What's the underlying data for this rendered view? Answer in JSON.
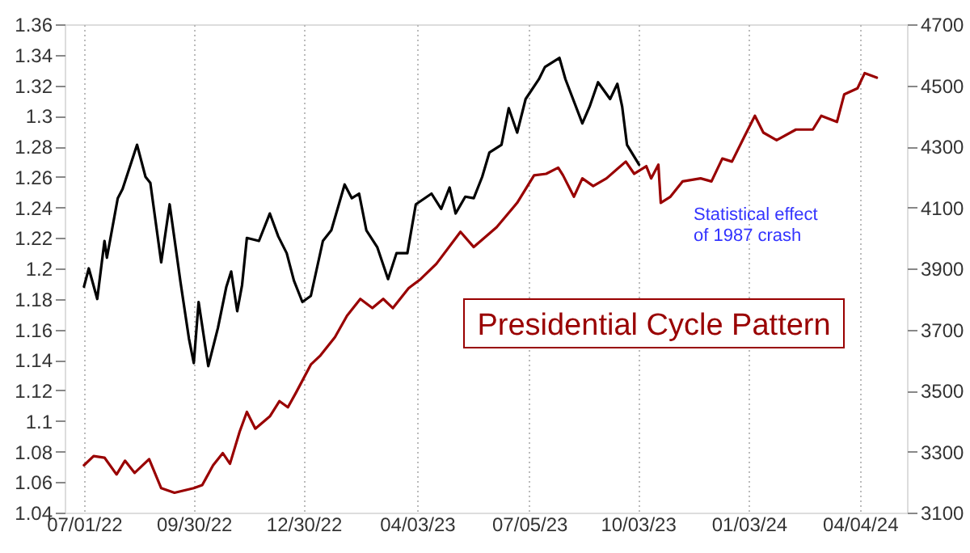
{
  "chart_data": {
    "type": "line",
    "xlim": [
      "2022-06-15",
      "2024-05-13"
    ],
    "xticks": [
      {
        "value": "2022-07-01",
        "label": "07/01/22"
      },
      {
        "value": "2022-09-30",
        "label": "09/30/22"
      },
      {
        "value": "2022-12-30",
        "label": "12/30/22"
      },
      {
        "value": "2023-04-03",
        "label": "04/03/23"
      },
      {
        "value": "2023-07-05",
        "label": "07/05/23"
      },
      {
        "value": "2023-10-03",
        "label": "10/03/23"
      },
      {
        "value": "2024-01-03",
        "label": "01/03/24"
      },
      {
        "value": "2024-04-04",
        "label": "04/04/24"
      }
    ],
    "ylim": [
      1.04,
      1.36
    ],
    "yticks": [
      1.04,
      1.06,
      1.08,
      1.1,
      1.12,
      1.14,
      1.16,
      1.18,
      1.2,
      1.22,
      1.24,
      1.26,
      1.28,
      1.3,
      1.32,
      1.34,
      1.36
    ],
    "y2lim": [
      3100,
      4700
    ],
    "y2ticks": [
      3100,
      3300,
      3500,
      3700,
      3900,
      4100,
      4300,
      4500,
      4700
    ],
    "grid": "x",
    "marker": "none",
    "line_style": "solid",
    "annotations": [
      "Statistical effect of 1987 crash"
    ],
    "series": [
      {
        "color": "#000000",
        "axis": "y2",
        "x": [
          "2022-07-01",
          "2022-07-05",
          "2022-07-12",
          "2022-07-18",
          "2022-07-20",
          "2022-07-29",
          "2022-08-02",
          "2022-08-14",
          "2022-08-21",
          "2022-08-25",
          "2022-09-03",
          "2022-09-10",
          "2022-09-19",
          "2022-09-26",
          "2022-09-30",
          "2022-10-04",
          "2022-10-12",
          "2022-10-20",
          "2022-10-27",
          "2022-10-31",
          "2022-11-05",
          "2022-11-09",
          "2022-11-13",
          "2022-11-23",
          "2022-12-02",
          "2022-12-09",
          "2022-12-16",
          "2022-12-22",
          "2022-12-29",
          "2023-01-05",
          "2023-01-15",
          "2023-01-22",
          "2023-02-02",
          "2023-02-08",
          "2023-02-14",
          "2023-02-20",
          "2023-03-01",
          "2023-03-10",
          "2023-03-17",
          "2023-03-26",
          "2023-04-02",
          "2023-04-15",
          "2023-04-23",
          "2023-04-30",
          "2023-05-05",
          "2023-05-13",
          "2023-05-20",
          "2023-05-27",
          "2023-06-02",
          "2023-06-12",
          "2023-06-18",
          "2023-06-25",
          "2023-07-02",
          "2023-07-13",
          "2023-07-18",
          "2023-07-30",
          "2023-08-04",
          "2023-08-18",
          "2023-08-24",
          "2023-08-31",
          "2023-09-10",
          "2023-09-16",
          "2023-09-20",
          "2023-09-24",
          "2023-10-04"
        ],
        "values": [
          3840,
          3900,
          3800,
          3990,
          3935,
          4130,
          4160,
          4305,
          4200,
          4180,
          3920,
          4110,
          3855,
          3670,
          3590,
          3790,
          3580,
          3705,
          3840,
          3890,
          3760,
          3845,
          4000,
          3990,
          4080,
          4005,
          3950,
          3860,
          3790,
          3810,
          3990,
          4025,
          4175,
          4130,
          4145,
          4025,
          3970,
          3865,
          3950,
          3950,
          4110,
          4145,
          4095,
          4165,
          4080,
          4135,
          4130,
          4200,
          4280,
          4305,
          4425,
          4345,
          4455,
          4520,
          4560,
          4590,
          4520,
          4375,
          4430,
          4510,
          4455,
          4505,
          4430,
          4305,
          4240
        ]
      },
      {
        "name": "Presidential Cycle Pattern",
        "color": "#990000",
        "axis": "y",
        "x": [
          "2022-07-01",
          "2022-07-09",
          "2022-07-18",
          "2022-07-28",
          "2022-08-04",
          "2022-08-12",
          "2022-08-24",
          "2022-09-03",
          "2022-09-14",
          "2022-09-30",
          "2022-10-07",
          "2022-10-16",
          "2022-10-24",
          "2022-10-30",
          "2022-11-07",
          "2022-11-13",
          "2022-11-20",
          "2022-12-02",
          "2022-12-10",
          "2022-12-17",
          "2022-12-24",
          "2023-01-05",
          "2023-01-13",
          "2023-01-25",
          "2023-02-04",
          "2023-02-15",
          "2023-02-25",
          "2023-03-06",
          "2023-03-14",
          "2023-03-27",
          "2023-04-06",
          "2023-04-19",
          "2023-05-09",
          "2023-05-20",
          "2023-06-08",
          "2023-06-25",
          "2023-07-09",
          "2023-07-19",
          "2023-07-29",
          "2023-08-02",
          "2023-08-11",
          "2023-08-18",
          "2023-08-27",
          "2023-09-07",
          "2023-09-23",
          "2023-09-30",
          "2023-10-10",
          "2023-10-14",
          "2023-10-20",
          "2023-10-22",
          "2023-10-30",
          "2023-11-09",
          "2023-11-24",
          "2023-12-03",
          "2023-12-12",
          "2023-12-20",
          "2023-12-30",
          "2024-01-08",
          "2024-01-15",
          "2024-01-26",
          "2024-02-11",
          "2024-02-25",
          "2024-03-03",
          "2024-03-16",
          "2024-03-22",
          "2024-04-02",
          "2024-04-08",
          "2024-04-18"
        ],
        "values": [
          1.071,
          1.077,
          1.076,
          1.065,
          1.074,
          1.066,
          1.075,
          1.056,
          1.053,
          1.056,
          1.058,
          1.071,
          1.079,
          1.072,
          1.093,
          1.106,
          1.095,
          1.103,
          1.113,
          1.109,
          1.119,
          1.137,
          1.143,
          1.155,
          1.169,
          1.18,
          1.174,
          1.18,
          1.174,
          1.187,
          1.193,
          1.203,
          1.224,
          1.214,
          1.227,
          1.243,
          1.261,
          1.262,
          1.266,
          1.261,
          1.247,
          1.259,
          1.254,
          1.259,
          1.27,
          1.262,
          1.267,
          1.259,
          1.268,
          1.243,
          1.247,
          1.257,
          1.259,
          1.257,
          1.272,
          1.27,
          1.286,
          1.3,
          1.289,
          1.284,
          1.291,
          1.291,
          1.3,
          1.296,
          1.314,
          1.318,
          1.328,
          1.325
        ]
      }
    ]
  }
}
